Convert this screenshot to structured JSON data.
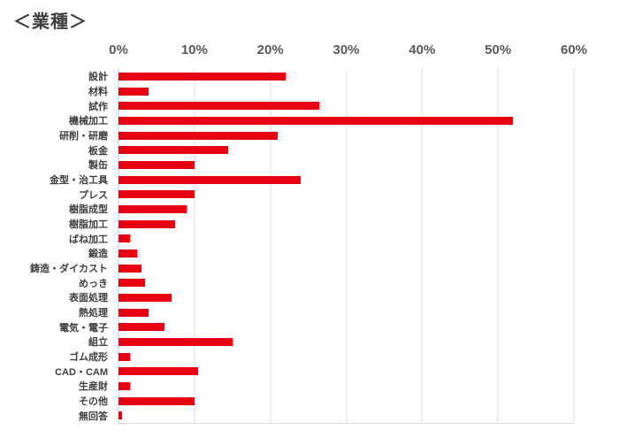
{
  "page_title": "＜業種＞",
  "colors": {
    "bar": "#e60012",
    "gridline": "#dcdcdc",
    "axis_line": "#c9c9c9",
    "tick_text": "#595959",
    "label_text": "#3f3f3f",
    "title_text": "#3d3d3d"
  },
  "chart_data": {
    "type": "bar",
    "orientation": "horizontal",
    "title": "＜業種＞",
    "xlabel": "",
    "ylabel": "",
    "xlim": [
      0,
      60
    ],
    "x_ticks": [
      "0%",
      "10%",
      "20%",
      "30%",
      "40%",
      "50%",
      "60%"
    ],
    "grid": true,
    "legend": false,
    "unit": "%",
    "categories": [
      "設計",
      "材料",
      "試作",
      "機械加工",
      "研削・研磨",
      "板金",
      "製缶",
      "金型・治工具",
      "プレス",
      "樹脂成型",
      "樹脂加工",
      "ばね加工",
      "鍛造",
      "鋳造・ダイカスト",
      "めっき",
      "表面処理",
      "熱処理",
      "電気・電子",
      "組立",
      "ゴム成形",
      "CAD・CAM",
      "生産財",
      "その他",
      "無回答"
    ],
    "values": [
      22,
      4,
      26.5,
      52,
      21,
      14.5,
      10,
      24,
      10,
      9,
      7.5,
      1.5,
      2.5,
      3,
      3.5,
      7,
      4,
      6,
      15,
      1.5,
      10.5,
      1.5,
      10,
      0.5
    ]
  }
}
